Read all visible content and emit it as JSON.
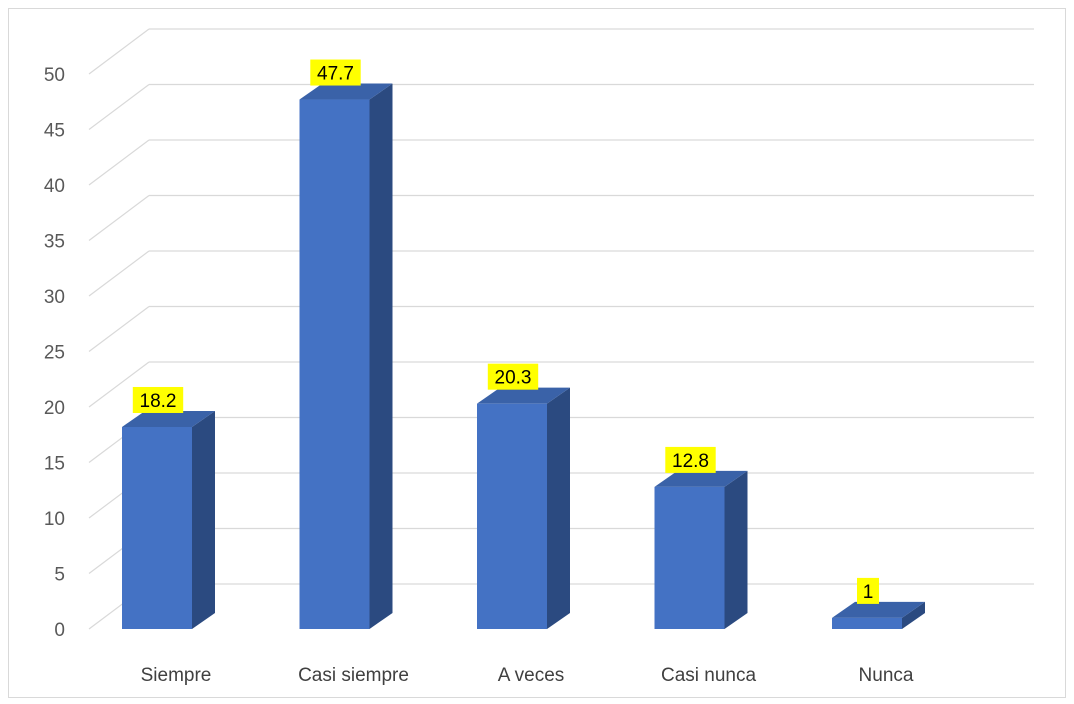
{
  "chart_data": {
    "type": "bar",
    "categories": [
      "Siempre",
      "Casi siempre",
      "A veces",
      "Casi nunca",
      "Nunca"
    ],
    "values": [
      18.2,
      47.7,
      20.3,
      12.8,
      1
    ],
    "data_labels": [
      "18.2",
      "47.7",
      "20.3",
      "12.8",
      "1"
    ],
    "title": "",
    "xlabel": "",
    "ylabel": "",
    "ylim": [
      0,
      50
    ],
    "yticks": [
      0,
      5,
      10,
      15,
      20,
      25,
      30,
      35,
      40,
      45,
      50
    ],
    "grid": true,
    "legend": "none",
    "style": "3d-column",
    "colors": {
      "bar_front": "#4472c4",
      "bar_side": "#2b4a80",
      "bar_top": "#3a62a8",
      "data_label_bg": "#ffff00",
      "grid": "#d9d9d9"
    }
  }
}
